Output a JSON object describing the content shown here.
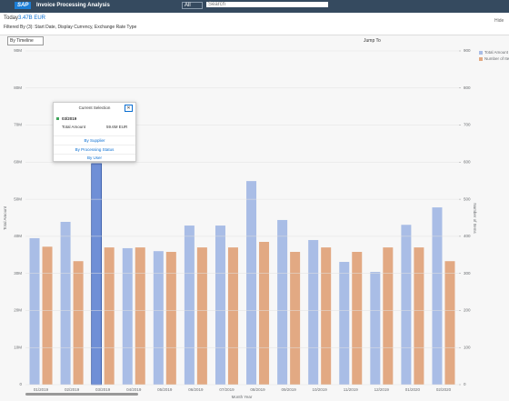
{
  "header": {
    "logo": "SAP",
    "app_title": "Invoice Processing Analysis",
    "scope": "All",
    "search_placeholder": "Search"
  },
  "subheader": {
    "label": "Today",
    "amount": "3.47B EUR",
    "filter": "Filtered By (3): Start Date, Display Currency, Exchange Rate Type",
    "hide": "Hide"
  },
  "toolbar": {
    "view": "By Timeline",
    "jump_to": "Jump To"
  },
  "popover": {
    "title": "Current Selection",
    "selection": "03/2019",
    "measure": "Total Amount",
    "amount": "59.6M EUR",
    "links": [
      "By Supplier",
      "By Processing Status",
      "By User"
    ]
  },
  "chart_data": {
    "type": "bar",
    "x_label": "Month Year",
    "y_label": "Total Amount",
    "y2_label": "Number of Items",
    "categories": [
      "01/2019",
      "02/2019",
      "03/2019",
      "04/2019",
      "05/2019",
      "06/2019",
      "07/2019",
      "08/2019",
      "09/2019",
      "10/2019",
      "11/2019",
      "12/2019",
      "01/2020",
      "02/2020"
    ],
    "series": [
      {
        "name": "Total Amount",
        "color": "#a9bde6",
        "highlight_color": "#6f8fd6",
        "values": [
          39.5,
          43.9,
          59.6,
          36.8,
          36.0,
          42.9,
          42.9,
          54.9,
          44.4,
          39.0,
          33.1,
          30.4,
          43.1,
          47.8
        ]
      },
      {
        "name": "Number of Items",
        "color": "#e2a983",
        "axis": "y2",
        "values": [
          372,
          333,
          370,
          370,
          358,
          370,
          370,
          385,
          358,
          370,
          358,
          370,
          370,
          333
        ]
      }
    ],
    "ylim": [
      0,
      90
    ],
    "yticks": [
      0,
      {
        "value": 10,
        "label": "10M"
      },
      {
        "value": 20,
        "label": "20M"
      },
      {
        "value": 30,
        "label": "30M"
      },
      {
        "value": 40,
        "label": "40M"
      },
      {
        "value": 50,
        "label": "50M"
      },
      {
        "value": 60,
        "label": "60M"
      },
      {
        "value": 70,
        "label": "70M"
      },
      {
        "value": 80,
        "label": "80M"
      },
      {
        "value": 90,
        "label": "90M"
      }
    ],
    "y2lim": [
      0,
      900
    ],
    "y2ticks": [
      0,
      100,
      200,
      300,
      400,
      500,
      600,
      700,
      800,
      900
    ],
    "grid": true,
    "legend": "top-right"
  }
}
